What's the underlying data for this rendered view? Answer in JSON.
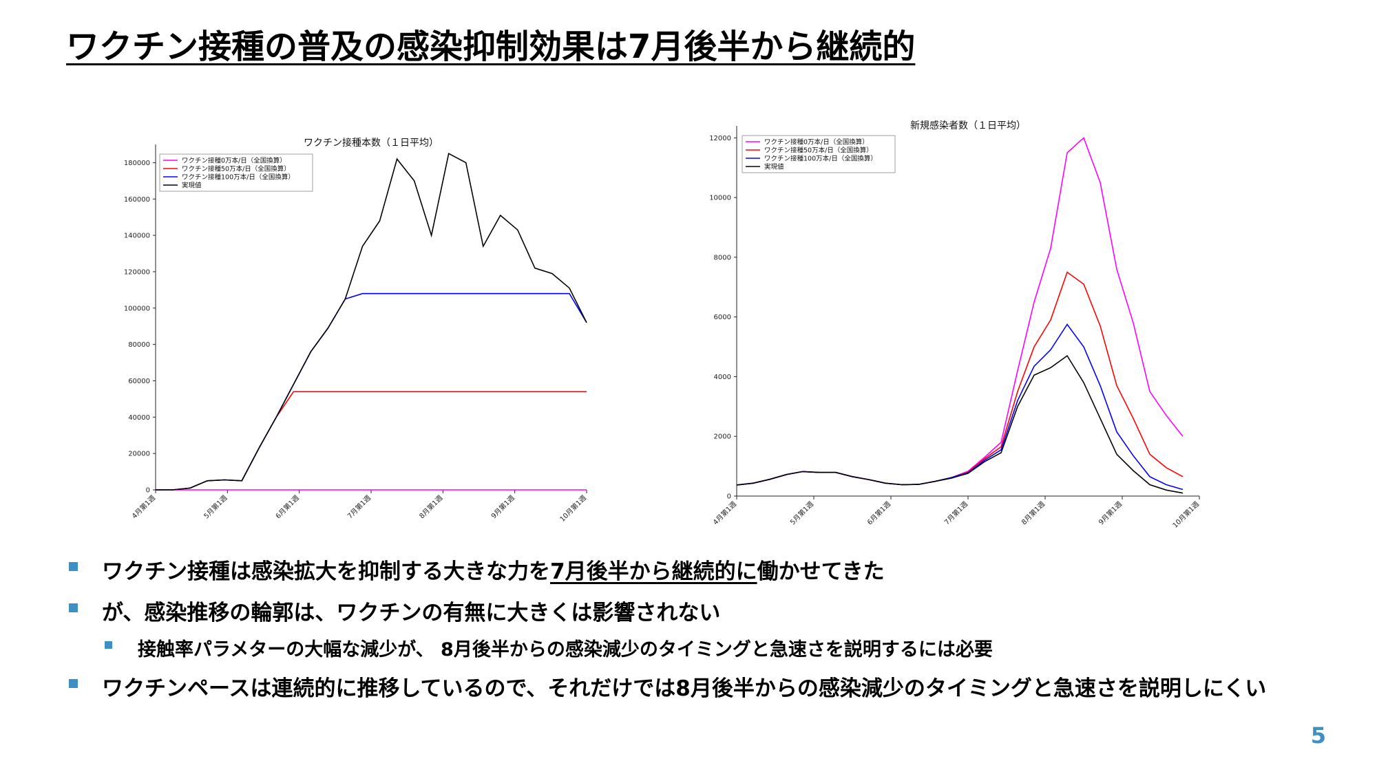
{
  "title": "ワクチン接種の普及の感染抑制効果は7月後半から継続的",
  "charts": {
    "left": {
      "title": "ワクチン接種本数（１日平均）"
    },
    "right": {
      "title": "新規感染者数（１日平均）"
    }
  },
  "chart_data": [
    {
      "type": "line",
      "title": "ワクチン接種本数（１日平均）",
      "xlabel": "",
      "ylabel": "",
      "ylim": [
        0,
        190000
      ],
      "yticks": [
        0,
        20000,
        40000,
        60000,
        80000,
        100000,
        120000,
        140000,
        160000,
        180000
      ],
      "xticks": [
        "4月第1週",
        "5月第1週",
        "6月第1週",
        "7月第1週",
        "8月第1週",
        "9月第1週",
        "10月第1週"
      ],
      "x": [
        0,
        1,
        2,
        3,
        4,
        5,
        6,
        7,
        8,
        9,
        10,
        11,
        12,
        13,
        14,
        15,
        16,
        17,
        18,
        19,
        20,
        21,
        22,
        23,
        24,
        25
      ],
      "legend": "top-left",
      "grid": false,
      "series": [
        {
          "name": "ワクチン接種0万本/日（全国換算）",
          "color": "#ff00ff",
          "values": [
            0,
            0,
            0,
            0,
            0,
            0,
            0,
            0,
            0,
            0,
            0,
            0,
            0,
            0,
            0,
            0,
            0,
            0,
            0,
            0,
            0,
            0,
            0,
            0,
            0,
            0
          ]
        },
        {
          "name": "ワクチン接種50万本/日（全国換算）",
          "color": "#ff0000",
          "values": [
            0,
            0,
            1000,
            5000,
            5500,
            5000,
            23000,
            40000,
            54000,
            54000,
            54000,
            54000,
            54000,
            54000,
            54000,
            54000,
            54000,
            54000,
            54000,
            54000,
            54000,
            54000,
            54000,
            54000,
            54000,
            54000
          ]
        },
        {
          "name": "ワクチン接種100万本/日（全国換算）",
          "color": "#0000ff",
          "values": [
            0,
            0,
            1000,
            5000,
            5500,
            5000,
            23000,
            40000,
            58000,
            76000,
            89000,
            105000,
            108000,
            108000,
            108000,
            108000,
            108000,
            108000,
            108000,
            108000,
            108000,
            108000,
            108000,
            108000,
            108000,
            92000
          ]
        },
        {
          "name": "実現値",
          "color": "#000000",
          "values": [
            0,
            0,
            1000,
            5000,
            5500,
            5000,
            23000,
            40000,
            58000,
            76000,
            89000,
            105000,
            134000,
            148000,
            182000,
            170000,
            140000,
            185000,
            180000,
            134000,
            151000,
            143000,
            122000,
            119000,
            111000,
            92000
          ]
        }
      ]
    },
    {
      "type": "line",
      "title": "新規感染者数（１日平均）",
      "xlabel": "",
      "ylabel": "",
      "ylim": [
        0,
        12400
      ],
      "yticks": [
        0,
        2000,
        4000,
        6000,
        8000,
        10000,
        12000
      ],
      "xticks": [
        "4月第1週",
        "5月第1週",
        "6月第1週",
        "7月第1週",
        "8月第1週",
        "9月第1週",
        "10月第1週"
      ],
      "x": [
        0,
        1,
        2,
        3,
        4,
        5,
        6,
        7,
        8,
        9,
        10,
        11,
        12,
        13,
        14,
        15,
        16,
        17,
        18,
        19,
        20,
        21,
        22,
        23,
        24,
        25,
        26,
        27,
        28
      ],
      "legend": "top-left",
      "grid": false,
      "series": [
        {
          "name": "ワクチン接種0万本/日（全国換算）",
          "color": "#ff00ff",
          "values": [
            370,
            430,
            560,
            720,
            820,
            790,
            790,
            650,
            550,
            430,
            380,
            390,
            490,
            620,
            830,
            1300,
            1800,
            4200,
            6500,
            8300,
            11500,
            12000,
            10500,
            7600,
            5800,
            3500,
            2700,
            2000,
            null
          ]
        },
        {
          "name": "ワクチン接種50万本/日（全国換算）",
          "color": "#ff0000",
          "values": [
            370,
            430,
            560,
            720,
            820,
            790,
            790,
            650,
            550,
            430,
            380,
            390,
            490,
            620,
            800,
            1250,
            1650,
            3500,
            5000,
            5900,
            7500,
            7100,
            5700,
            3700,
            2600,
            1400,
            950,
            650,
            null
          ]
        },
        {
          "name": "ワクチン接種100万本/日（全国換算）",
          "color": "#0000ff",
          "values": [
            370,
            430,
            560,
            720,
            820,
            790,
            790,
            650,
            550,
            430,
            380,
            390,
            490,
            620,
            780,
            1200,
            1550,
            3200,
            4350,
            4900,
            5750,
            5000,
            3700,
            2150,
            1350,
            650,
            380,
            220,
            null
          ]
        },
        {
          "name": "実現値",
          "color": "#000000",
          "values": [
            370,
            430,
            560,
            720,
            820,
            790,
            790,
            650,
            550,
            430,
            380,
            390,
            490,
            600,
            760,
            1150,
            1450,
            3000,
            4050,
            4300,
            4700,
            3800,
            2600,
            1400,
            850,
            380,
            200,
            100,
            null
          ]
        }
      ]
    }
  ],
  "bullets": [
    {
      "level": 1,
      "pre": "ワクチン接種は感染拡大を抑制する大きな力を",
      "u": "7月後半から継続的に",
      "post": "働かせてきた"
    },
    {
      "level": 1,
      "pre": "が、感染推移の輪郭は、ワクチンの有無に大きくは影響されない",
      "u": "",
      "post": ""
    },
    {
      "level": 2,
      "pre": "接触率パラメターの大幅な減少が、 8月後半からの感染減少のタイミングと急速さを説明するには必要",
      "u": "",
      "post": ""
    },
    {
      "level": 1,
      "pre": "ワクチンペースは連続的に推移しているので、それだけでは8月後半からの感染減少のタイミングと急速さを説明しにくい",
      "u": "",
      "post": ""
    }
  ],
  "page_number": "5",
  "colors": {
    "accent": "#3d8fc4"
  }
}
